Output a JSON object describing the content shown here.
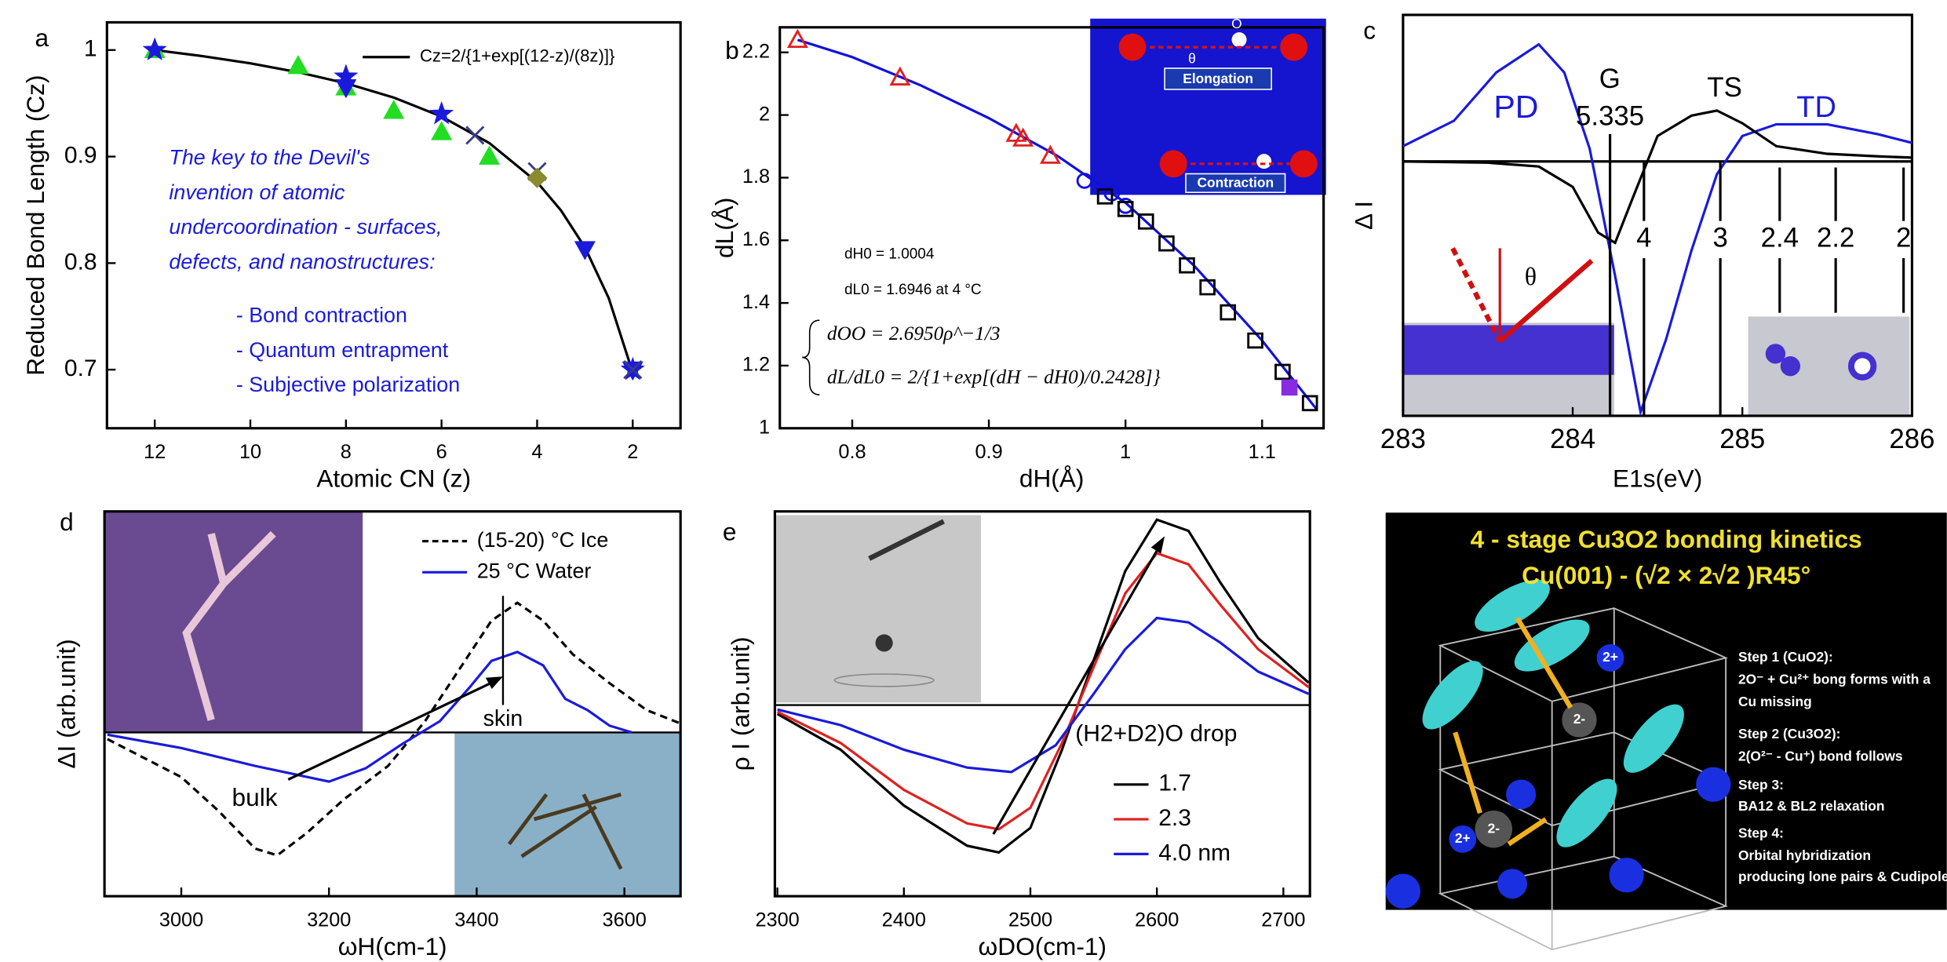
{
  "chart_data": [
    {
      "type": "line",
      "panel": "a",
      "xlabel": "Atomic CN (z)",
      "ylabel": "Reduced Bond Length (Cz)",
      "xlim": [
        13,
        1
      ],
      "ylim": [
        0.645,
        1.026
      ],
      "xticks": [
        12,
        10,
        8,
        6,
        4,
        2
      ],
      "yticks": [
        0.7,
        0.8,
        0.9,
        1
      ],
      "series": [
        {
          "name": "Cz=2/{1+exp[(12-z)/(8z)]}",
          "color": "#000000",
          "x": [
            12,
            11,
            10,
            9,
            8,
            7,
            6,
            5,
            4,
            3.5,
            3,
            2.5,
            2
          ],
          "values": [
            1,
            0.9943,
            0.9875,
            0.9792,
            0.9688,
            0.9554,
            0.9376,
            0.9127,
            0.876,
            0.8494,
            0.8148,
            0.7669,
            0.6973
          ]
        },
        {
          "color": "#22dd22",
          "marker": "triangle-up",
          "filled": true,
          "x": [
            12,
            9,
            8,
            7,
            6,
            5
          ],
          "values": [
            1,
            0.985,
            0.965,
            0.943,
            0.923,
            0.9
          ]
        },
        {
          "color": "#1a1adb",
          "marker": "star",
          "filled": true,
          "x": [
            12,
            8,
            6,
            2
          ],
          "values": [
            1,
            0.975,
            0.94,
            0.7
          ]
        },
        {
          "color": "#1a1adb",
          "marker": "triangle-down",
          "filled": true,
          "x": [
            8,
            3,
            2
          ],
          "values": [
            0.965,
            0.813,
            0.7
          ]
        },
        {
          "color": "#3a3a8a",
          "marker": "x",
          "filled": false,
          "x": [
            5.3,
            4,
            2
          ],
          "values": [
            0.92,
            0.886,
            0.7
          ]
        },
        {
          "color": "#8a8a30",
          "marker": "diamond",
          "filled": true,
          "x": [
            4
          ],
          "values": [
            0.88
          ]
        }
      ],
      "annotations": [
        "The key to the Devil's",
        "invention of atomic",
        "undercoordination - surfaces,",
        "defects, and nanostructures:"
      ],
      "list": [
        "- Bond contraction",
        "- Quantum entrapment",
        "- Subjective polarization"
      ]
    },
    {
      "type": "line",
      "panel": "b",
      "xlabel": "dH(Å)",
      "ylabel": "dL(Å)",
      "xlim": [
        0.747,
        1.145
      ],
      "ylim": [
        1,
        2.28
      ],
      "xticks": [
        0.8,
        0.9,
        1,
        1.1
      ],
      "yticks": [
        1,
        1.2,
        1.4,
        1.6,
        1.8,
        2,
        2.2
      ],
      "series": [
        {
          "color": "#1010dd",
          "x": [
            0.76,
            0.8,
            0.85,
            0.9,
            0.95,
            1.0,
            1.05,
            1.1,
            1.14
          ],
          "values": [
            2.24,
            2.185,
            2.095,
            1.99,
            1.87,
            1.72,
            1.52,
            1.28,
            1.06
          ]
        },
        {
          "color": "#e02020",
          "marker": "triangle-up",
          "filled": false,
          "x": [
            0.76,
            0.835,
            0.92,
            0.925,
            0.945
          ],
          "values": [
            2.24,
            2.12,
            1.94,
            1.925,
            1.87
          ]
        },
        {
          "color": "#1010dd",
          "marker": "circle",
          "filled": false,
          "x": [
            0.97,
            0.99,
            1.0
          ],
          "values": [
            1.79,
            1.75,
            1.71
          ]
        },
        {
          "color": "#000000",
          "marker": "square",
          "filled": false,
          "x": [
            0.985,
            1.0,
            1.015,
            1.03,
            1.045,
            1.06,
            1.075,
            1.095,
            1.115,
            1.135
          ],
          "values": [
            1.74,
            1.7,
            1.66,
            1.59,
            1.52,
            1.45,
            1.37,
            1.28,
            1.18,
            1.08
          ]
        },
        {
          "color": "#8a2be2",
          "marker": "square",
          "filled": true,
          "x": [
            1.12
          ],
          "values": [
            1.13
          ]
        }
      ],
      "annotations": [
        "dH0 = 1.0004",
        "dL0 = 1.6946 at 4 °C",
        "dOO = 2.6950ρ^−1/3",
        "dL/dL0 = 2/{1+exp[(dH − dH0)/0.2428]}"
      ],
      "inset_labels": [
        "Elongation",
        "Contraction",
        "θ",
        "O"
      ]
    },
    {
      "type": "line",
      "panel": "c",
      "xlabel": "E1s(eV)",
      "ylabel": "Δ I",
      "xlim": [
        283,
        286
      ],
      "ylim": [
        -1,
        0.576
      ],
      "xticks": [
        283,
        284,
        285,
        286
      ],
      "series": [
        {
          "color": "#1a1adb",
          "x": [
            283,
            283.3,
            283.55,
            283.8,
            283.95,
            284.1,
            284.25,
            284.4,
            284.55,
            284.7,
            284.85,
            285,
            285.2,
            285.5,
            285.8,
            286
          ],
          "values": [
            0.06,
            0.16,
            0.35,
            0.46,
            0.35,
            0.05,
            -0.45,
            -0.985,
            -0.7,
            -0.35,
            -0.05,
            0.1,
            0.146,
            0.146,
            0.107,
            0.073
          ]
        },
        {
          "color": "#000000",
          "x": [
            283,
            283.5,
            283.8,
            284,
            284.15,
            284.25,
            284.35,
            284.5,
            284.7,
            284.85,
            285,
            285.2,
            285.5,
            285.8,
            286
          ],
          "values": [
            0,
            -0.005,
            -0.02,
            -0.1,
            -0.28,
            -0.32,
            -0.15,
            0.1,
            0.18,
            0.2,
            0.15,
            0.06,
            0.03,
            0.02,
            0.015
          ]
        }
      ],
      "vlines": [
        {
          "x": 284.22,
          "label": "5.335"
        },
        {
          "x": 284.42,
          "label": "4"
        },
        {
          "x": 284.87,
          "label": "3"
        },
        {
          "x": 285.22,
          "label": "2.4"
        },
        {
          "x": 285.55,
          "label": "2.2"
        },
        {
          "x": 285.95,
          "label": "2"
        }
      ],
      "annotations": [
        "PD",
        "G",
        "TS",
        "TD",
        "θ"
      ]
    },
    {
      "type": "line",
      "panel": "d",
      "xlabel": "ωH(cm-1)",
      "ylabel": "ΔI (arb.unit)",
      "xlim": [
        2896,
        3676
      ],
      "ylim": [
        -0.733,
        0.989
      ],
      "xticks": [
        3000,
        3200,
        3400,
        3600
      ],
      "series": [
        {
          "name": "(15-20) °C Ice",
          "color": "#000000",
          "dash": true,
          "x": [
            2900,
            3000,
            3050,
            3100,
            3130,
            3170,
            3220,
            3280,
            3330,
            3380,
            3420,
            3455,
            3490,
            3530,
            3580,
            3630,
            3676
          ],
          "values": [
            -0.03,
            -0.2,
            -0.35,
            -0.52,
            -0.55,
            -0.45,
            -0.3,
            -0.15,
            0.05,
            0.3,
            0.5,
            0.58,
            0.5,
            0.35,
            0.22,
            0.1,
            0.04
          ]
        },
        {
          "name": "25 °C Water",
          "color": "#1a1adb",
          "x": [
            2900,
            3000,
            3100,
            3200,
            3250,
            3300,
            3350,
            3390,
            3420,
            3455,
            3490,
            3520,
            3550,
            3580,
            3610
          ],
          "values": [
            -0.01,
            -0.07,
            -0.15,
            -0.22,
            -0.16,
            -0.05,
            0.05,
            0.2,
            0.32,
            0.36,
            0.3,
            0.15,
            0.1,
            0.03,
            0
          ]
        }
      ],
      "annotations": [
        "skin",
        "bulk"
      ]
    },
    {
      "type": "line",
      "panel": "e",
      "xlabel": "ωDO(cm-1)",
      "ylabel": "ρ I (arb.unit)",
      "legend_title": "(H2+D2)O drop",
      "xlim": [
        2298,
        2721
      ],
      "ylim": [
        -0.856,
        0.867
      ],
      "xticks": [
        2300,
        2400,
        2500,
        2600,
        2700
      ],
      "series": [
        {
          "name": "1.7",
          "color": "#000000",
          "x": [
            2300,
            2350,
            2400,
            2450,
            2475,
            2500,
            2525,
            2550,
            2575,
            2600,
            2625,
            2650,
            2680,
            2720
          ],
          "values": [
            -0.04,
            -0.2,
            -0.45,
            -0.63,
            -0.66,
            -0.55,
            -0.2,
            0.2,
            0.6,
            0.83,
            0.78,
            0.55,
            0.3,
            0.1
          ]
        },
        {
          "name": "2.3",
          "color": "#e02020",
          "x": [
            2300,
            2350,
            2400,
            2450,
            2475,
            2500,
            2525,
            2550,
            2575,
            2600,
            2625,
            2650,
            2680,
            2720
          ],
          "values": [
            -0.03,
            -0.17,
            -0.38,
            -0.53,
            -0.556,
            -0.46,
            -0.17,
            0.17,
            0.5,
            0.68,
            0.63,
            0.45,
            0.25,
            0.08
          ]
        },
        {
          "name": "4.0 nm",
          "color": "#1a1adb",
          "x": [
            2300,
            2350,
            2400,
            2450,
            2485,
            2520,
            2550,
            2575,
            2600,
            2625,
            2650,
            2680,
            2720
          ],
          "values": [
            -0.02,
            -0.09,
            -0.2,
            -0.28,
            -0.3,
            -0.18,
            0.05,
            0.25,
            0.39,
            0.37,
            0.28,
            0.15,
            0.05
          ]
        }
      ]
    }
  ],
  "diagram": {
    "title": "4 - stage Cu3O2 bonding kinetics",
    "subtitle": "Cu(001) - (√2 × 2√2 )R45°",
    "steps": [
      [
        "Step 1 (CuO2):",
        "2O⁻ + Cu²⁺ bong forms with a",
        "Cu missing"
      ],
      [
        "Step 2 (Cu3O2):",
        "2(O²⁻ - Cu⁺) bond follows"
      ],
      [
        "Step 3:",
        "BA12 & BL2 relaxation"
      ],
      [
        "Step 4:",
        "Orbital hybridization",
        "producing lone pairs & Cudipole"
      ]
    ],
    "labels": [
      "2+",
      "2-"
    ]
  }
}
